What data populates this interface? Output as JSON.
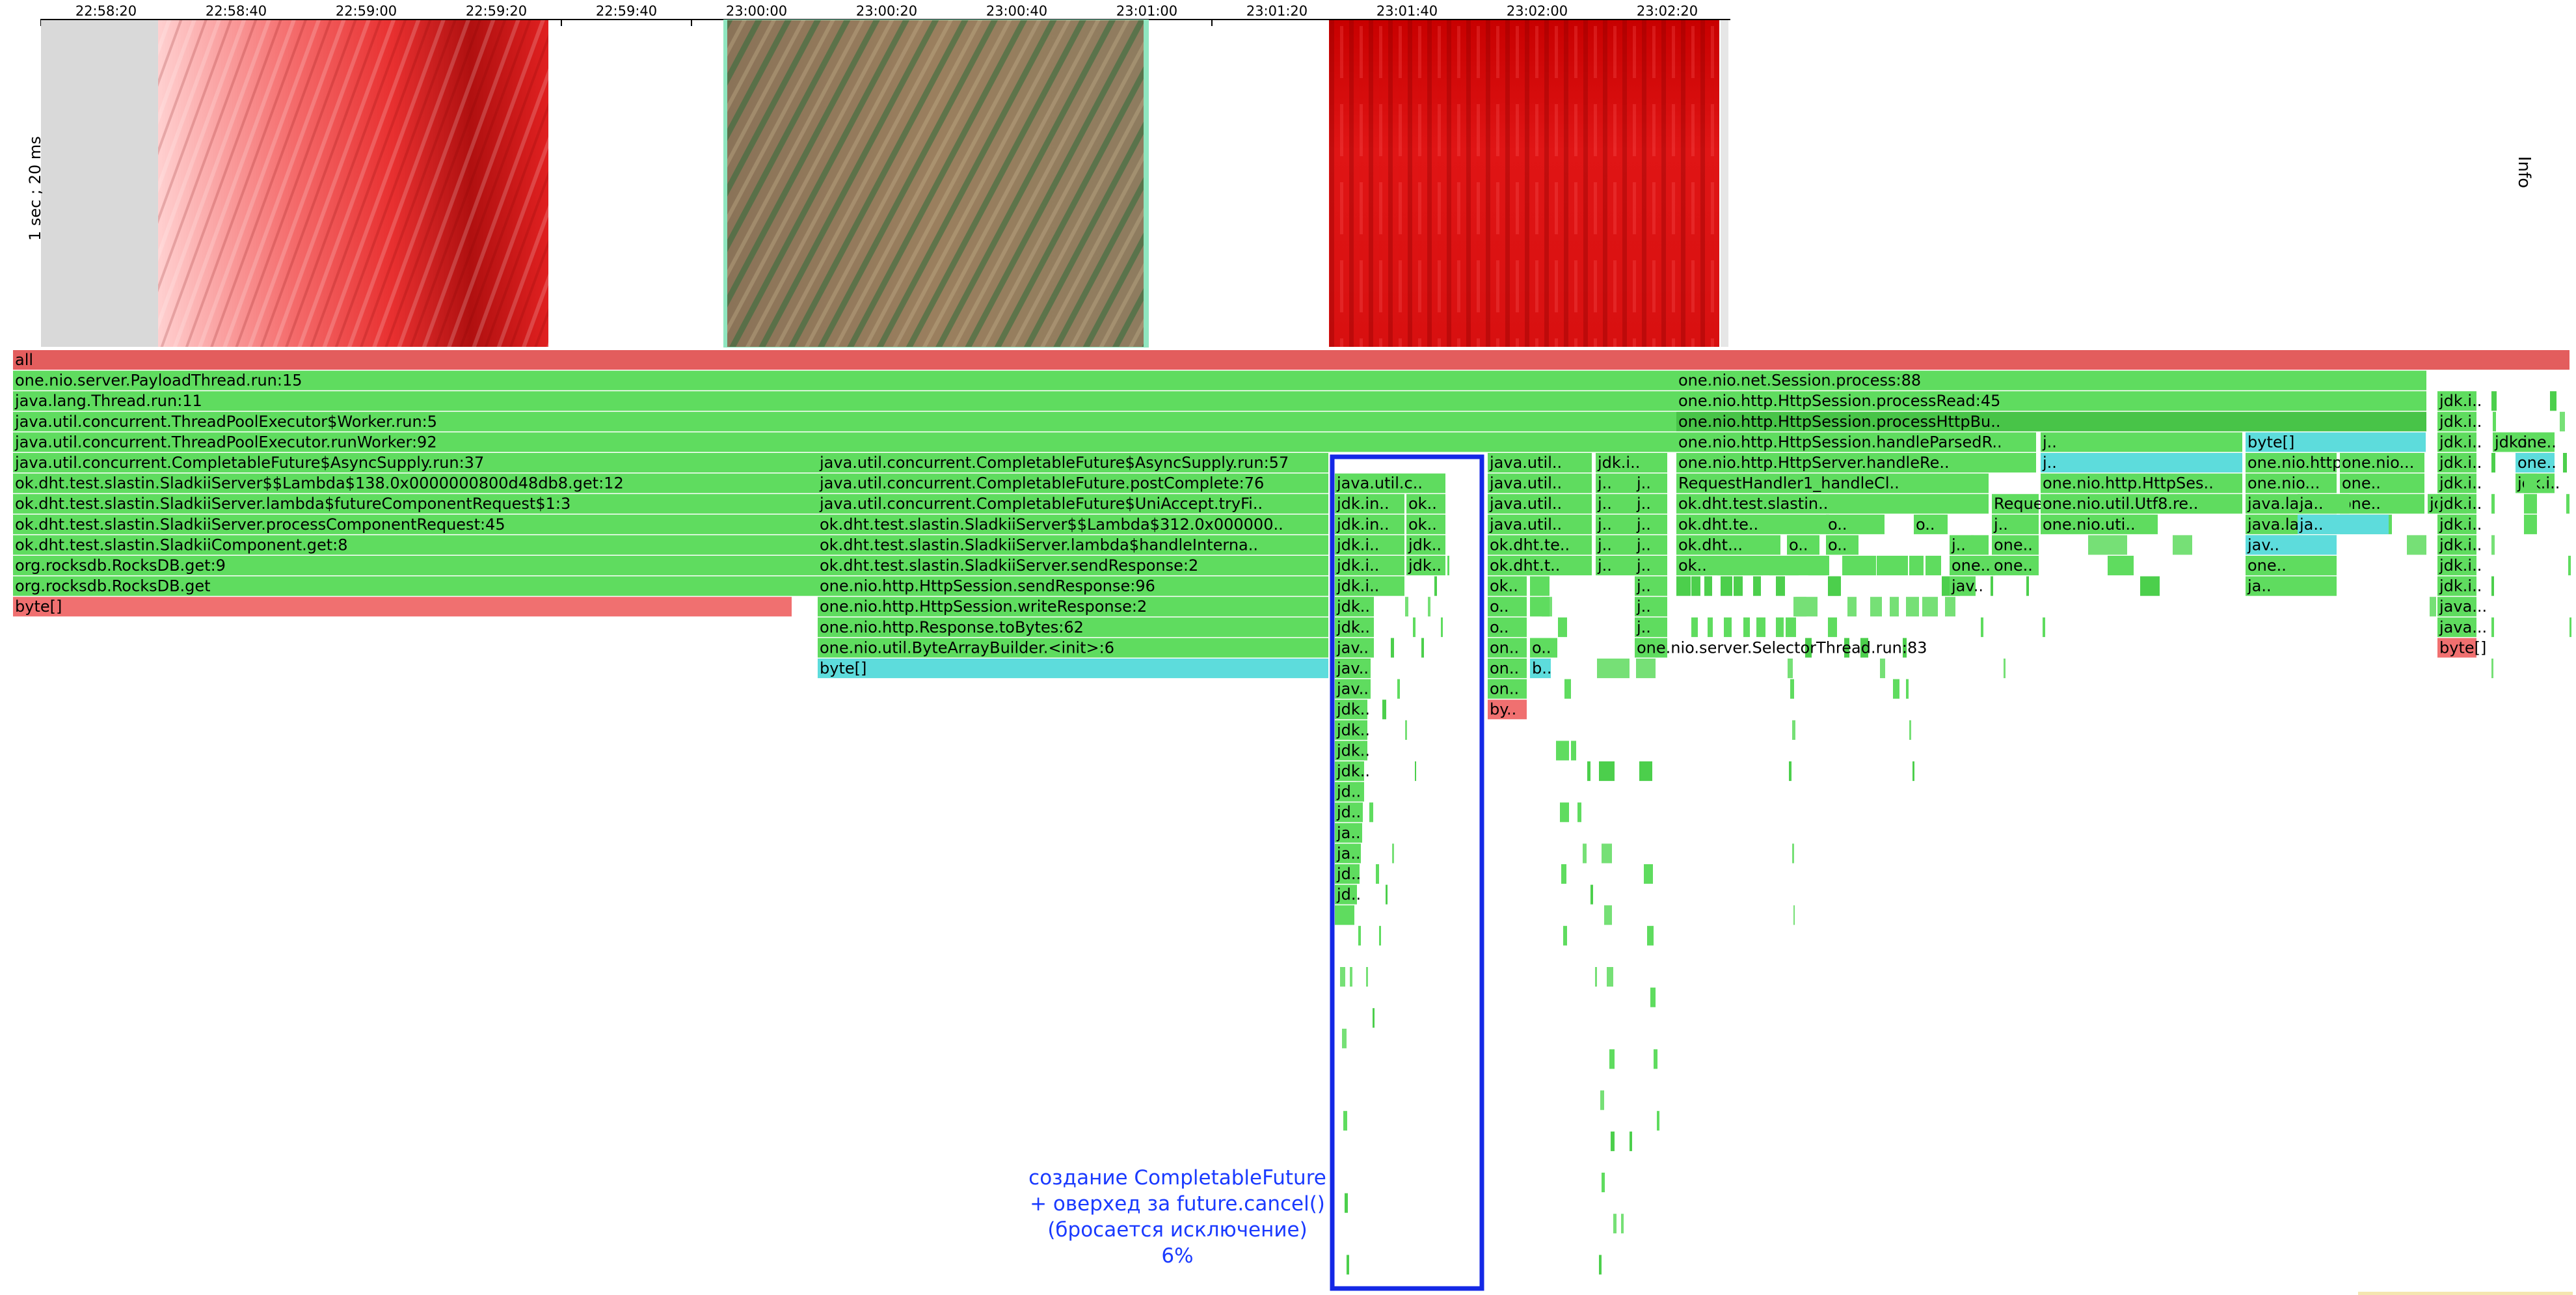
{
  "timeline": {
    "ticks": [
      "22:58:20",
      "22:58:40",
      "22:59:00",
      "22:59:20",
      "22:59:40",
      "23:00:00",
      "23:00:20",
      "23:00:40",
      "23:01:00",
      "23:01:20",
      "23:01:40",
      "23:02:00",
      "23:02:20"
    ],
    "y_label": "1 sec ; 20 ms",
    "info_label": "Info"
  },
  "annotation": {
    "lines": [
      "создание CompletableFuture",
      "+ оверхед за future.cancel()",
      "(бросается исключение)",
      "6%"
    ]
  },
  "colors": {
    "all": "#e35d5d",
    "java": "#5fdc5f",
    "java_dark": "#48c448",
    "native": "#5ddcdc",
    "alloc": "#f07070",
    "highlight": "#1428e6"
  },
  "flame": {
    "frames": [
      {
        "label": "all",
        "c": "all"
      },
      {
        "label": "one.nio.server.PayloadThread.run:15",
        "c": "java"
      },
      {
        "label": "java.lang.Thread.run:11",
        "c": "java"
      },
      {
        "label": "java.util.concurrent.ThreadPoolExecutor$Worker.run:5",
        "c": "java"
      },
      {
        "label": "java.util.concurrent.ThreadPoolExecutor.runWorker:92",
        "c": "java"
      },
      {
        "label": "java.util.concurrent.CompletableFuture$AsyncSupply.run:37",
        "c": "java"
      },
      {
        "label": "ok.dht.test.slastin.SladkiiServer$$Lambda$138.0x0000000800d48db8.get:12",
        "c": "java"
      },
      {
        "label": "ok.dht.test.slastin.SladkiiServer.lambda$futureComponentRequest$1:3",
        "c": "java"
      },
      {
        "label": "ok.dht.test.slastin.SladkiiServer.processComponentRequest:45",
        "c": "java"
      },
      {
        "label": "ok.dht.test.slastin.SladkiiComponent.get:8",
        "c": "java"
      },
      {
        "label": "org.rocksdb.RocksDB.get:9",
        "c": "java"
      },
      {
        "label": "org.rocksdb.RocksDB.get",
        "c": "java"
      },
      {
        "label": "byte[]",
        "c": "alloc"
      },
      {
        "label": "java.util.concurrent.CompletableFuture$AsyncSupply.run:57",
        "c": "java"
      },
      {
        "label": "java.util.concurrent.CompletableFuture.postComplete:76",
        "c": "java"
      },
      {
        "label": "java.util.concurrent.CompletableFuture$UniAccept.tryFi..",
        "c": "java"
      },
      {
        "label": "ok.dht.test.slastin.SladkiiServer$$Lambda$312.0x000000..",
        "c": "java"
      },
      {
        "label": "ok.dht.test.slastin.SladkiiServer.lambda$handleInterna..",
        "c": "java"
      },
      {
        "label": "ok.dht.test.slastin.SladkiiServer.sendResponse:2",
        "c": "java"
      },
      {
        "label": "one.nio.http.HttpSession.sendResponse:96",
        "c": "java"
      },
      {
        "label": "one.nio.http.HttpSession.writeResponse:2",
        "c": "java"
      },
      {
        "label": "one.nio.http.Response.toBytes:62",
        "c": "java"
      },
      {
        "label": "one.nio.util.ByteArrayBuilder.<init>:6",
        "c": "java"
      },
      {
        "label": "byte[]",
        "c": "native"
      },
      {
        "label": "java.util.c..",
        "c": "java"
      },
      {
        "label": "jdk.in..",
        "c": "java"
      },
      {
        "label": "ok..",
        "c": "java"
      },
      {
        "label": "jdk.in..",
        "c": "java"
      },
      {
        "label": "ok..",
        "c": "java"
      },
      {
        "label": "jdk.i..",
        "c": "java"
      },
      {
        "label": "jdk..",
        "c": "java"
      },
      {
        "label": "jdk.i..",
        "c": "java"
      },
      {
        "label": "jdk..",
        "c": "java"
      },
      {
        "label": "jdk.i..",
        "c": "java"
      },
      {
        "label": "jdk..",
        "c": "java"
      },
      {
        "label": "jdk..",
        "c": "java"
      },
      {
        "label": "jav..",
        "c": "java"
      },
      {
        "label": "jav..",
        "c": "java"
      },
      {
        "label": "jav..",
        "c": "java"
      },
      {
        "label": "jdk..",
        "c": "java"
      },
      {
        "label": "jdk..",
        "c": "java"
      },
      {
        "label": "jdk..",
        "c": "java"
      },
      {
        "label": "jdk..",
        "c": "java"
      },
      {
        "label": "jd..",
        "c": "java"
      },
      {
        "label": "jd..",
        "c": "java"
      },
      {
        "label": "ja..",
        "c": "java"
      },
      {
        "label": "ja..",
        "c": "java"
      },
      {
        "label": "jd..",
        "c": "java"
      },
      {
        "label": "jd..",
        "c": "java"
      },
      {
        "label": "j..",
        "c": "java"
      },
      {
        "label": "java.util..",
        "c": "java"
      },
      {
        "label": "java.util..",
        "c": "java"
      },
      {
        "label": "java.util..",
        "c": "java"
      },
      {
        "label": "java.util..",
        "c": "java"
      },
      {
        "label": "ok.dht.te..",
        "c": "java"
      },
      {
        "label": "ok.dht.t..",
        "c": "java"
      },
      {
        "label": "ok..",
        "c": "java"
      },
      {
        "label": "o..",
        "c": "java"
      },
      {
        "label": "o..",
        "c": "java"
      },
      {
        "label": "ok..",
        "c": "java"
      },
      {
        "label": "o..",
        "c": "java"
      },
      {
        "label": "on..",
        "c": "java"
      },
      {
        "label": "o..",
        "c": "java"
      },
      {
        "label": "on..",
        "c": "java"
      },
      {
        "label": "b..",
        "c": "native"
      },
      {
        "label": "on..",
        "c": "java"
      },
      {
        "label": "by..",
        "c": "alloc"
      },
      {
        "label": "jdk.i..",
        "c": "java"
      },
      {
        "label": "j..",
        "c": "java"
      },
      {
        "label": "j..",
        "c": "java"
      },
      {
        "label": "j..",
        "c": "java"
      },
      {
        "label": "j..",
        "c": "java"
      },
      {
        "label": "j..",
        "c": "java"
      },
      {
        "label": "j..",
        "c": "java"
      },
      {
        "label": "j..",
        "c": "java"
      },
      {
        "label": "j..",
        "c": "java"
      },
      {
        "label": "j..",
        "c": "java"
      },
      {
        "label": "j..",
        "c": "java"
      },
      {
        "label": "j..",
        "c": "java"
      },
      {
        "label": "j..",
        "c": "java"
      },
      {
        "label": "j..",
        "c": "java"
      },
      {
        "label": "one.nio.server.SelectorThread.run:83",
        "c": "java"
      },
      {
        "label": "one.nio.net.Session.process:88",
        "c": "java"
      },
      {
        "label": "one.nio.http.HttpSession.processRead:45",
        "c": "java"
      },
      {
        "label": "one.nio.http.HttpSession.processHttpBu..",
        "c": "java_dark"
      },
      {
        "label": "one.nio.http.HttpSession.handleParsedR..",
        "c": "java"
      },
      {
        "label": "one.nio.http.HttpServer.handleRe..",
        "c": "java"
      },
      {
        "label": "RequestHandler1_handleCl..",
        "c": "java"
      },
      {
        "label": "ok.dht.test.slastin..",
        "c": "java"
      },
      {
        "label": "ok.dht.te..",
        "c": "java"
      },
      {
        "label": "ok.dht...",
        "c": "java"
      },
      {
        "label": "ok..",
        "c": "java"
      },
      {
        "label": "o..",
        "c": "java"
      },
      {
        "label": "o..",
        "c": "java"
      },
      {
        "label": "o..",
        "c": "java"
      },
      {
        "label": "j..",
        "c": "java"
      },
      {
        "label": "one..",
        "c": "java"
      },
      {
        "label": "Reques..",
        "c": "java"
      },
      {
        "label": "o..",
        "c": "java"
      },
      {
        "label": "j..",
        "c": "java"
      },
      {
        "label": "one..",
        "c": "java"
      },
      {
        "label": "one..",
        "c": "java"
      },
      {
        "label": "jav..",
        "c": "java"
      },
      {
        "label": "j..",
        "c": "java"
      },
      {
        "label": "j..",
        "c": "native"
      },
      {
        "label": "one.nio.http.HttpSes..",
        "c": "java"
      },
      {
        "label": "one.nio.util.Utf8.re..",
        "c": "java"
      },
      {
        "label": "one.nio.uti..",
        "c": "java"
      },
      {
        "label": "byte[]",
        "c": "native"
      },
      {
        "label": "one.nio.http.Htt..",
        "c": "java"
      },
      {
        "label": "one.nio...",
        "c": "java"
      },
      {
        "label": "one.nio...",
        "c": "java"
      },
      {
        "label": "java.la..",
        "c": "java"
      },
      {
        "label": "java.la..",
        "c": "java"
      },
      {
        "label": "java.la..",
        "c": "native"
      },
      {
        "label": "one..",
        "c": "java"
      },
      {
        "label": "one..",
        "c": "java"
      },
      {
        "label": "one..",
        "c": "java"
      },
      {
        "label": "on..",
        "c": "java"
      },
      {
        "label": "byt..",
        "c": "native"
      },
      {
        "label": "ja..",
        "c": "java"
      },
      {
        "label": "ja..",
        "c": "java"
      },
      {
        "label": "ja..",
        "c": "native"
      },
      {
        "label": "jav..",
        "c": "native"
      },
      {
        "label": "one..",
        "c": "java"
      },
      {
        "label": "one..",
        "c": "java"
      },
      {
        "label": "one..",
        "c": "native"
      },
      {
        "label": "jdk.i..",
        "c": "java"
      },
      {
        "label": "java..",
        "c": "java"
      },
      {
        "label": "jdk.i..",
        "c": "java"
      },
      {
        "label": "jdk.i..",
        "c": "java"
      },
      {
        "label": "jdk.i..",
        "c": "java"
      },
      {
        "label": "jdk.i..",
        "c": "java"
      },
      {
        "label": "jdk.i..",
        "c": "java"
      },
      {
        "label": "jdk.i..",
        "c": "java"
      },
      {
        "label": "jdk.i..",
        "c": "java"
      },
      {
        "label": "jdk.i..",
        "c": "java"
      },
      {
        "label": "jdk.i..",
        "c": "java"
      },
      {
        "label": "jdk.i..",
        "c": "java"
      },
      {
        "label": "jdk.i..",
        "c": "java"
      },
      {
        "label": "jdk.i..",
        "c": "java"
      },
      {
        "label": "jdk.i..",
        "c": "java"
      },
      {
        "label": "jdk.i..",
        "c": "java"
      },
      {
        "label": "jdk.i..",
        "c": "java"
      },
      {
        "label": "jdk.i..",
        "c": "java"
      },
      {
        "label": "java...",
        "c": "java"
      },
      {
        "label": "java...",
        "c": "java"
      },
      {
        "label": "byte[]",
        "c": "alloc"
      }
    ]
  }
}
